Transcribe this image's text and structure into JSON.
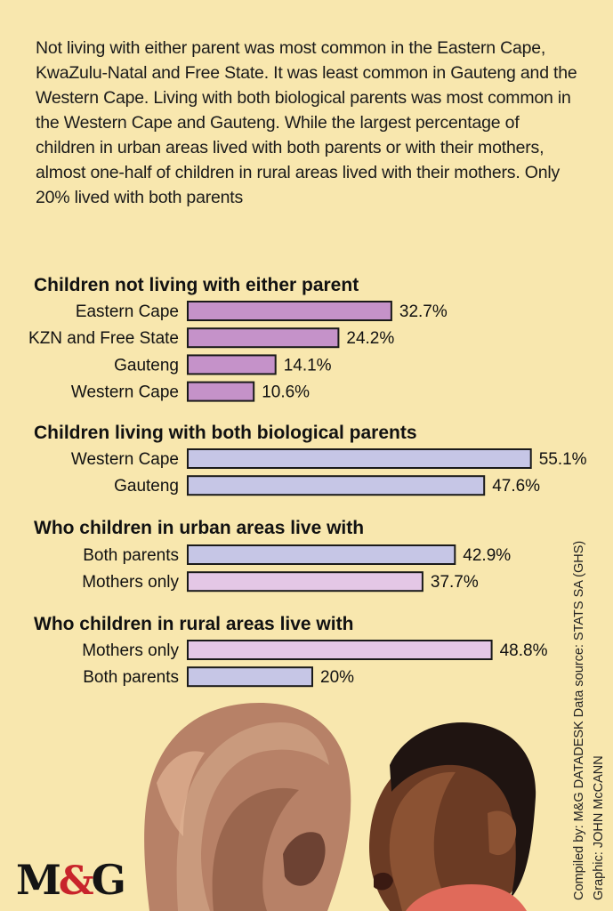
{
  "intro_text": "Not living with either parent was most common in the Eastern Cape, KwaZulu-Natal and Free State. It was least common in Gauteng and the Western Cape. Living with both biological parents was most common in the Western Cape and Gauteng. While the largest percentage of children in urban areas lived with both parents or with their mothers, almost one-half of children in rural areas lived with their mothers. Only 20% lived with both parents",
  "colors": {
    "background": "#f8e7ae",
    "not_living_bar": "#c592c9",
    "both_parents_bar": "#c6c6e6",
    "mothers_only_bar": "#e4c7e6",
    "bar_stroke": "#1a1a1a",
    "logo_amp": "#c8242b"
  },
  "chart_data": [
    {
      "type": "bar",
      "orientation": "horizontal",
      "title": "Children not living with either parent",
      "categories": [
        "Eastern Cape",
        "KZN and Free State",
        "Gauteng",
        "Western Cape"
      ],
      "values": [
        32.7,
        24.2,
        14.1,
        10.6
      ],
      "value_labels": [
        "32.7%",
        "24.2%",
        "14.1%",
        "10.6%"
      ],
      "bar_colors": [
        "#c592c9",
        "#c592c9",
        "#c592c9",
        "#c592c9"
      ]
    },
    {
      "type": "bar",
      "orientation": "horizontal",
      "title": "Children living with both biological parents",
      "categories": [
        "Western Cape",
        "Gauteng"
      ],
      "values": [
        55.1,
        47.6
      ],
      "value_labels": [
        "55.1%",
        "47.6%"
      ],
      "bar_colors": [
        "#c6c6e6",
        "#c6c6e6"
      ]
    },
    {
      "type": "bar",
      "orientation": "horizontal",
      "title": "Who children in urban areas live with",
      "categories": [
        "Both parents",
        "Mothers only"
      ],
      "values": [
        42.9,
        37.7
      ],
      "value_labels": [
        "42.9%",
        "37.7%"
      ],
      "bar_colors": [
        "#c6c6e6",
        "#e4c7e6"
      ]
    },
    {
      "type": "bar",
      "orientation": "horizontal",
      "title": "Who children in rural areas live with",
      "categories": [
        "Mothers only",
        "Both parents"
      ],
      "values": [
        48.8,
        20
      ],
      "value_labels": [
        "48.8%",
        "20%"
      ],
      "bar_colors": [
        "#e4c7e6",
        "#c6c6e6"
      ]
    }
  ],
  "credits": {
    "source": "Compiled by: M&G DATADESK  Data source: STATS SA (GHS)",
    "graphic": "Graphic: JOHN McCANN"
  },
  "logo": {
    "left": "M",
    "amp": "&",
    "right": "G"
  }
}
